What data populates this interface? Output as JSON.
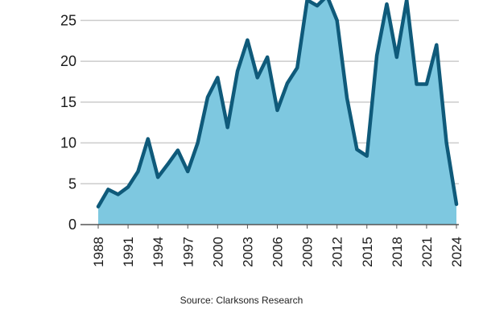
{
  "source_note": "Source: Clarksons Research",
  "chart_data": {
    "type": "area",
    "title": "",
    "xlabel": "",
    "ylabel": "",
    "ylim": [
      0,
      27.5
    ],
    "yticks": [
      0,
      5,
      10,
      15,
      20,
      25
    ],
    "xticks": [
      1988,
      1991,
      1994,
      1997,
      2000,
      2003,
      2006,
      2009,
      2012,
      2015,
      2018,
      2021,
      2024
    ],
    "grid": true,
    "legend": "none",
    "colors": {
      "line": "#0f5a7a",
      "fill": "#7ec8e0",
      "grid": "#cccccc"
    },
    "x": [
      1988,
      1989,
      1990,
      1991,
      1992,
      1993,
      1994,
      1995,
      1996,
      1997,
      1998,
      1999,
      2000,
      2001,
      2002,
      2003,
      2004,
      2005,
      2006,
      2007,
      2008,
      2009,
      2010,
      2011,
      2012,
      2013,
      2014,
      2015,
      2016,
      2017,
      2018,
      2019,
      2020,
      2021,
      2022,
      2023,
      2024
    ],
    "series": [
      {
        "values": [
          2.2,
          4.3,
          3.7,
          4.6,
          6.5,
          10.5,
          5.8,
          7.4,
          9.1,
          6.5,
          10.0,
          15.6,
          18.0,
          11.9,
          18.8,
          22.6,
          18.0,
          20.5,
          14.0,
          17.3,
          19.2,
          27.5,
          26.8,
          28.0,
          25.0,
          15.5,
          9.2,
          8.4,
          20.7,
          27.0,
          20.5,
          27.5,
          17.2,
          17.2,
          22.0,
          10.0,
          2.5
        ]
      }
    ]
  }
}
